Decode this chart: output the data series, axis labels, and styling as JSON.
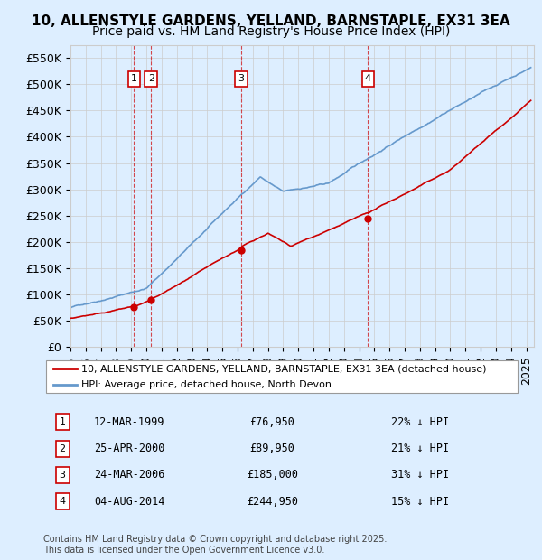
{
  "title_line1": "10, ALLENSTYLE GARDENS, YELLAND, BARNSTAPLE, EX31 3EA",
  "title_line2": "Price paid vs. HM Land Registry's House Price Index (HPI)",
  "ylabel": "",
  "xlabel": "",
  "ylim": [
    0,
    575000
  ],
  "yticks": [
    0,
    50000,
    100000,
    150000,
    200000,
    250000,
    300000,
    350000,
    400000,
    450000,
    500000,
    550000
  ],
  "ytick_labels": [
    "£0",
    "£50K",
    "£100K",
    "£150K",
    "£200K",
    "£250K",
    "£300K",
    "£350K",
    "£400K",
    "£450K",
    "£500K",
    "£550K"
  ],
  "xlim_start": 1995.0,
  "xlim_end": 2025.5,
  "price_paid_color": "#cc0000",
  "hpi_color": "#6699cc",
  "background_color": "#ddeeff",
  "plot_bg_color": "#ffffff",
  "sale_dates": [
    1999.19,
    2000.31,
    2006.23,
    2014.59
  ],
  "sale_prices": [
    76950,
    89950,
    185000,
    244950
  ],
  "sale_labels": [
    "1",
    "2",
    "3",
    "4"
  ],
  "legend_label_red": "10, ALLENSTYLE GARDENS, YELLAND, BARNSTAPLE, EX31 3EA (detached house)",
  "legend_label_blue": "HPI: Average price, detached house, North Devon",
  "table_rows": [
    [
      "1",
      "12-MAR-1999",
      "£76,950",
      "22% ↓ HPI"
    ],
    [
      "2",
      "25-APR-2000",
      "£89,950",
      "21% ↓ HPI"
    ],
    [
      "3",
      "24-MAR-2006",
      "£185,000",
      "31% ↓ HPI"
    ],
    [
      "4",
      "04-AUG-2014",
      "£244,950",
      "15% ↓ HPI"
    ]
  ],
  "footer_text": "Contains HM Land Registry data © Crown copyright and database right 2025.\nThis data is licensed under the Open Government Licence v3.0.",
  "title_fontsize": 11,
  "subtitle_fontsize": 10,
  "tick_fontsize": 9,
  "legend_fontsize": 9
}
